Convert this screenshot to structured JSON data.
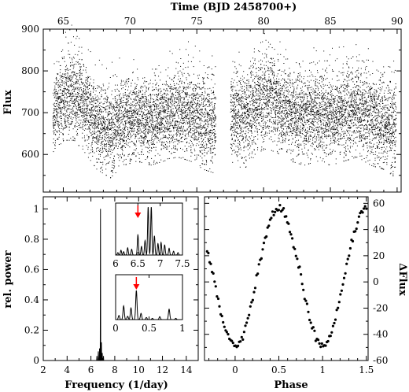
{
  "chart_data": [
    {
      "id": "lightcurve",
      "type": "scatter",
      "xlabel": "Time (BJD 2458700+)",
      "ylabel": "Flux",
      "xlim": [
        63.5,
        90.3
      ],
      "ylim": [
        510,
        900
      ],
      "xticks": [
        65,
        70,
        75,
        80,
        85,
        90
      ],
      "yticks": [
        600,
        700,
        800,
        900
      ],
      "x_axis_position": "top",
      "segments": [
        {
          "x_start": 64.2,
          "x_end": 76.4,
          "envelope": [
            {
              "x": 64.2,
              "low": 600,
              "mid": 700,
              "high": 800
            },
            {
              "x": 65.0,
              "low": 650,
              "mid": 740,
              "high": 840
            },
            {
              "x": 65.8,
              "low": 650,
              "mid": 740,
              "high": 870
            },
            {
              "x": 66.6,
              "low": 620,
              "mid": 720,
              "high": 830
            },
            {
              "x": 67.5,
              "low": 580,
              "mid": 670,
              "high": 780
            },
            {
              "x": 68.5,
              "low": 560,
              "mid": 660,
              "high": 770
            },
            {
              "x": 69.5,
              "low": 590,
              "mid": 680,
              "high": 790
            },
            {
              "x": 70.5,
              "low": 600,
              "mid": 690,
              "high": 790
            },
            {
              "x": 71.5,
              "low": 590,
              "mid": 680,
              "high": 790
            },
            {
              "x": 72.5,
              "low": 600,
              "mid": 690,
              "high": 790
            },
            {
              "x": 73.5,
              "low": 610,
              "mid": 700,
              "high": 810
            },
            {
              "x": 74.5,
              "low": 600,
              "mid": 700,
              "high": 830
            },
            {
              "x": 75.5,
              "low": 580,
              "mid": 680,
              "high": 800
            },
            {
              "x": 76.4,
              "low": 570,
              "mid": 670,
              "high": 790
            }
          ]
        },
        {
          "x_start": 77.5,
          "x_end": 89.9,
          "envelope": [
            {
              "x": 77.5,
              "low": 600,
              "mid": 700,
              "high": 810
            },
            {
              "x": 78.5,
              "low": 580,
              "mid": 690,
              "high": 800
            },
            {
              "x": 79.5,
              "low": 620,
              "mid": 730,
              "high": 850
            },
            {
              "x": 80.2,
              "low": 630,
              "mid": 740,
              "high": 860
            },
            {
              "x": 81.0,
              "low": 620,
              "mid": 720,
              "high": 830
            },
            {
              "x": 82.0,
              "low": 600,
              "mid": 700,
              "high": 810
            },
            {
              "x": 83.0,
              "low": 590,
              "mid": 690,
              "high": 800
            },
            {
              "x": 84.0,
              "low": 600,
              "mid": 700,
              "high": 810
            },
            {
              "x": 85.0,
              "low": 590,
              "mid": 690,
              "high": 810
            },
            {
              "x": 86.0,
              "low": 600,
              "mid": 700,
              "high": 820
            },
            {
              "x": 87.0,
              "low": 610,
              "mid": 710,
              "high": 820
            },
            {
              "x": 88.0,
              "low": 590,
              "mid": 690,
              "high": 810
            },
            {
              "x": 89.0,
              "low": 580,
              "mid": 680,
              "high": 800
            },
            {
              "x": 89.9,
              "low": 560,
              "mid": 670,
              "high": 790
            }
          ]
        }
      ]
    },
    {
      "id": "periodogram",
      "type": "line",
      "xlabel": "Frequency (1/day)",
      "ylabel": "rel. power",
      "xlim": [
        2,
        15
      ],
      "ylim": [
        0,
        1.08
      ],
      "xticks": [
        2,
        4,
        6,
        8,
        10,
        12,
        14
      ],
      "yticks": [
        0,
        0.2,
        0.4,
        0.6,
        0.8,
        1
      ],
      "ytick_labels": [
        "0",
        "0.2",
        "0.4",
        "0.6",
        "0.8",
        "1"
      ],
      "peaks": [
        {
          "x": 6.5,
          "y": 0.03
        },
        {
          "x": 6.62,
          "y": 0.06
        },
        {
          "x": 6.72,
          "y": 0.08
        },
        {
          "x": 6.8,
          "y": 1.0
        },
        {
          "x": 6.88,
          "y": 0.12
        },
        {
          "x": 6.95,
          "y": 0.05
        },
        {
          "x": 7.05,
          "y": 0.03
        }
      ]
    },
    {
      "id": "inset-top",
      "type": "line",
      "xlim": [
        6,
        7.5
      ],
      "ylim": [
        0,
        1.08
      ],
      "xticks": [
        6,
        6.5,
        7,
        7.5
      ],
      "xtick_labels": [
        "6",
        "6.5",
        "7",
        "7.5"
      ],
      "arrow_at": 6.5,
      "arrow_color": "#ff0000",
      "peaks": [
        {
          "x": 6.05,
          "y": 0.05
        },
        {
          "x": 6.12,
          "y": 0.1
        },
        {
          "x": 6.18,
          "y": 0.07
        },
        {
          "x": 6.27,
          "y": 0.15
        },
        {
          "x": 6.36,
          "y": 0.12
        },
        {
          "x": 6.5,
          "y": 0.42
        },
        {
          "x": 6.58,
          "y": 0.18
        },
        {
          "x": 6.66,
          "y": 0.3
        },
        {
          "x": 6.73,
          "y": 1.0
        },
        {
          "x": 6.8,
          "y": 1.0
        },
        {
          "x": 6.87,
          "y": 0.4
        },
        {
          "x": 6.95,
          "y": 0.24
        },
        {
          "x": 7.02,
          "y": 0.26
        },
        {
          "x": 7.1,
          "y": 0.21
        },
        {
          "x": 7.2,
          "y": 0.14
        },
        {
          "x": 7.3,
          "y": 0.08
        },
        {
          "x": 7.4,
          "y": 0.05
        }
      ]
    },
    {
      "id": "inset-bottom",
      "type": "line",
      "xlim": [
        0,
        1
      ],
      "ylim": [
        0,
        1.08
      ],
      "xticks": [
        0,
        0.5,
        1
      ],
      "xtick_labels": [
        "0",
        "0.5",
        "1"
      ],
      "arrow_at": 0.31,
      "arrow_color": "#ff0000",
      "peaks": [
        {
          "x": 0.05,
          "y": 0.1
        },
        {
          "x": 0.12,
          "y": 0.33
        },
        {
          "x": 0.18,
          "y": 0.08
        },
        {
          "x": 0.23,
          "y": 0.28
        },
        {
          "x": 0.31,
          "y": 0.7
        },
        {
          "x": 0.38,
          "y": 0.15
        },
        {
          "x": 0.46,
          "y": 0.05
        },
        {
          "x": 0.55,
          "y": 0.03
        },
        {
          "x": 0.66,
          "y": 0.07
        },
        {
          "x": 0.8,
          "y": 0.25
        },
        {
          "x": 0.9,
          "y": 0.03
        }
      ]
    },
    {
      "id": "phase",
      "type": "scatter",
      "xlabel": "Phase",
      "ylabel": "ΔFlux",
      "xlim": [
        -0.35,
        1.52
      ],
      "ylim": [
        -60,
        65
      ],
      "xticks": [
        0,
        0.5,
        1,
        1.5
      ],
      "xtick_labels": [
        "0",
        "0.5",
        "1",
        "1.5"
      ],
      "yticks": [
        -60,
        -40,
        -20,
        0,
        20,
        40,
        60
      ],
      "y_axis_position": "right",
      "amplitude": 52,
      "offset": 4,
      "phase_of_maximum": 0.5,
      "phase_start": -0.32,
      "phase_end": 1.5
    }
  ]
}
